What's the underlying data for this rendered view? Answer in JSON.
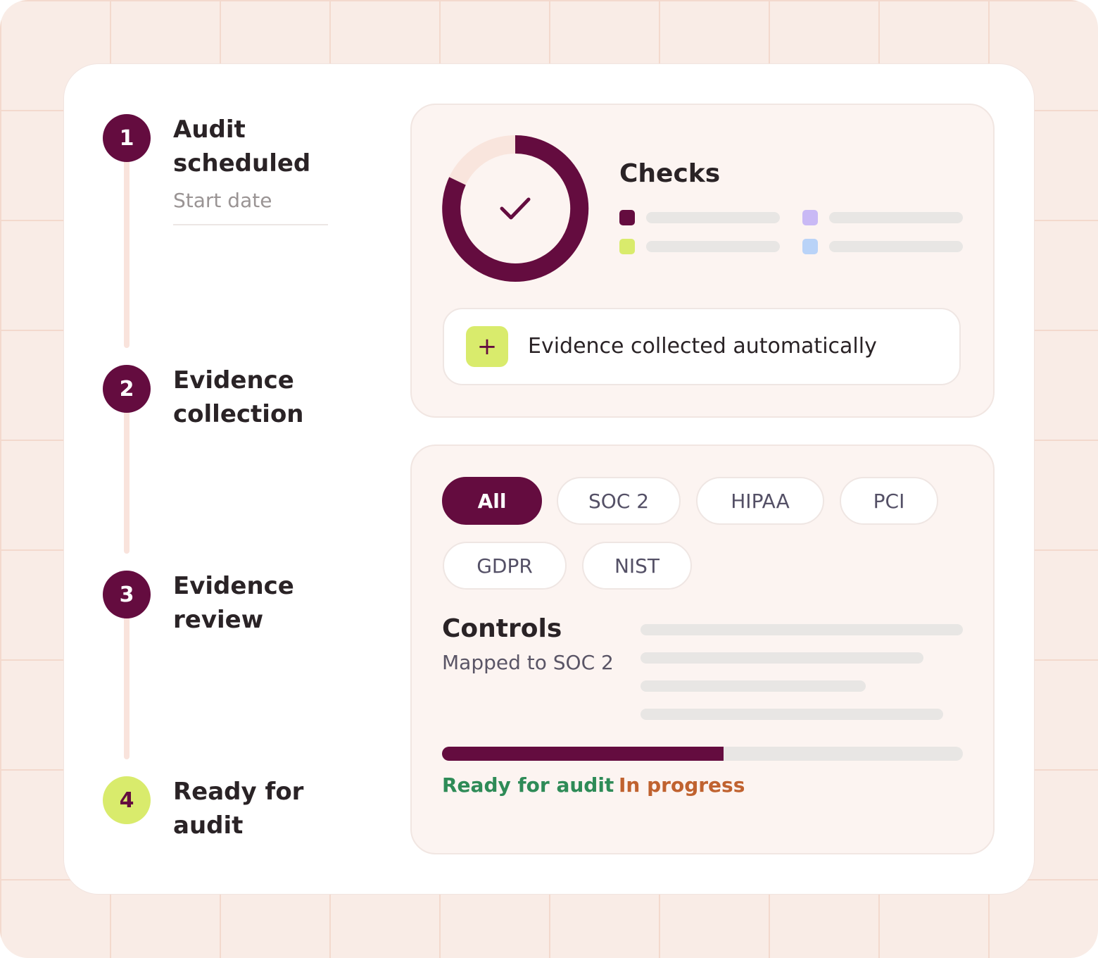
{
  "steps": [
    {
      "number": "1",
      "title_lines": [
        "Audit",
        "scheduled"
      ],
      "subtitle": "Start date"
    },
    {
      "number": "2",
      "title_lines": [
        "Evidence",
        "collection"
      ]
    },
    {
      "number": "3",
      "title_lines": [
        "Evidence",
        "review"
      ]
    },
    {
      "number": "4",
      "title_lines": [
        "Ready for",
        "audit"
      ]
    }
  ],
  "checks": {
    "title": "Checks"
  },
  "evidence": {
    "label": "Evidence collected automatically"
  },
  "filters": [
    "All",
    "SOC 2",
    "HIPAA",
    "PCI",
    "GDPR",
    "NIST"
  ],
  "controls": {
    "title": "Controls",
    "subtitle": "Mapped to SOC 2"
  },
  "status": {
    "ready": "Ready for audit",
    "in_progress": "In progress"
  }
}
